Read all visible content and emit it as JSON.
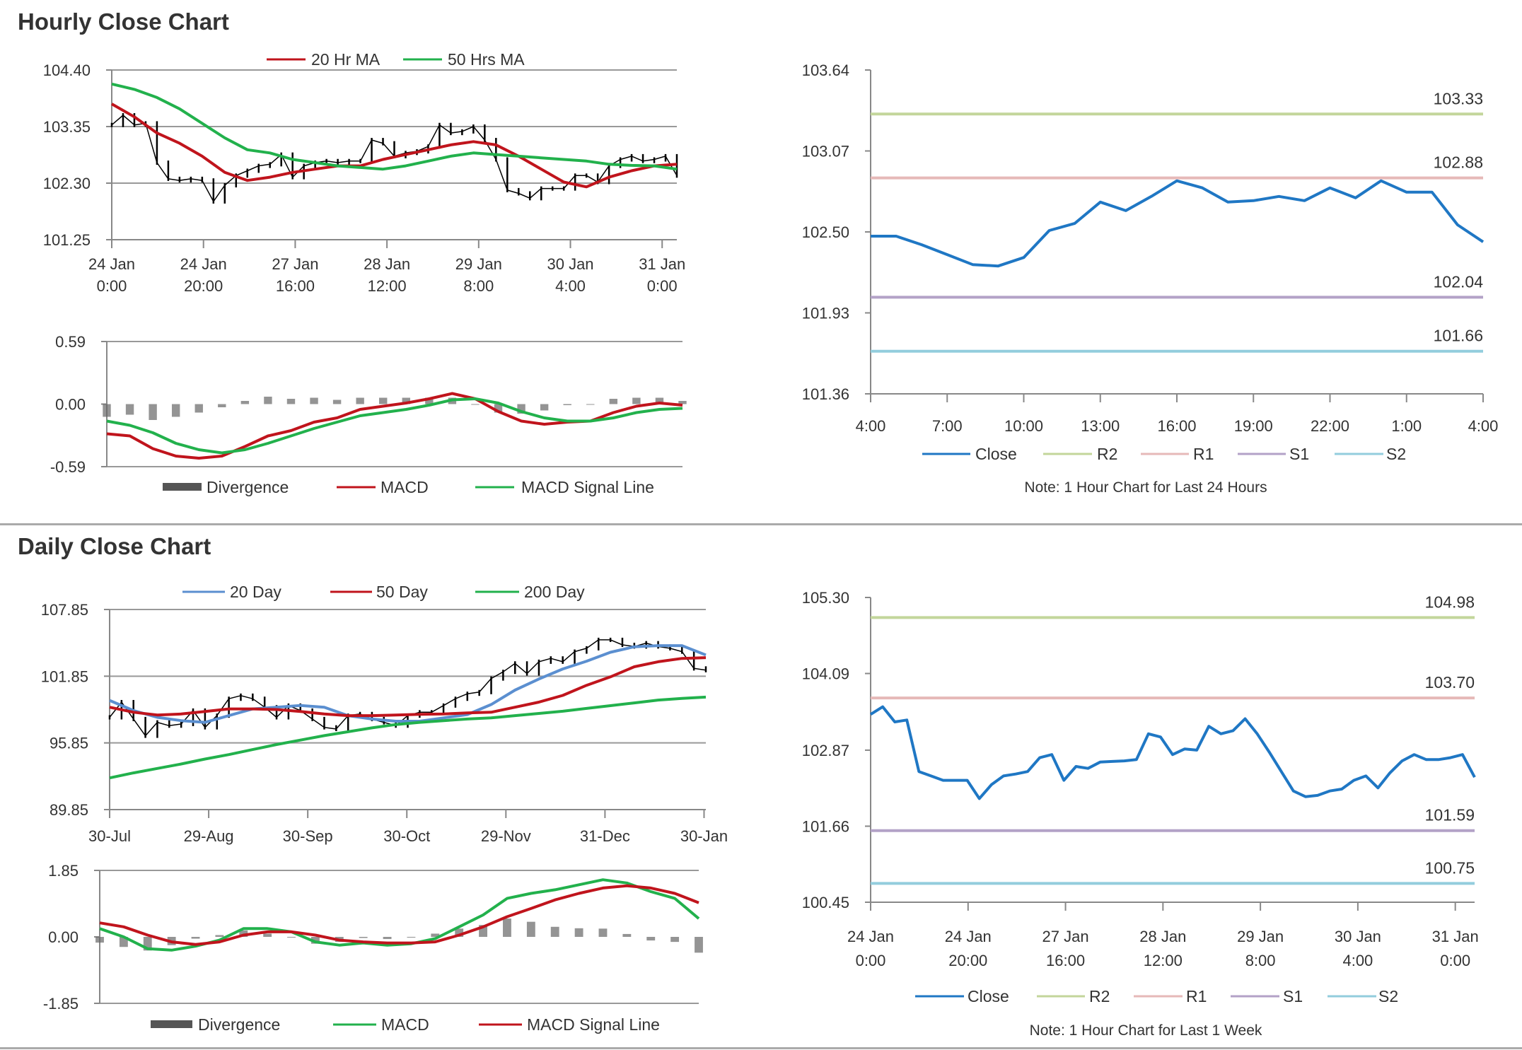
{
  "sections": {
    "hourly_title": "Hourly Close Chart",
    "daily_title": "Daily Close Chart"
  },
  "colors": {
    "price": "#000000",
    "red": "#c0141c",
    "green": "#22b14c",
    "blue_ma": "#5b8fd0",
    "close": "#1f77c4",
    "r2": "#c3d69b",
    "r1": "#e6b9b8",
    "s1": "#b3a2c7",
    "s2": "#93cddd",
    "divergence": "#666666"
  },
  "chart_data": [
    {
      "type": "line",
      "panel": "hourly-price",
      "ylim": [
        101.25,
        104.4
      ],
      "y_ticks": [
        "104.40",
        "103.35",
        "102.30",
        "101.25"
      ],
      "x_ticks": [
        {
          "date": "24 Jan",
          "time": "0:00"
        },
        {
          "date": "24 Jan",
          "time": "20:00"
        },
        {
          "date": "27 Jan",
          "time": "16:00"
        },
        {
          "date": "28 Jan",
          "time": "12:00"
        },
        {
          "date": "29 Jan",
          "time": "8:00"
        },
        {
          "date": "30 Jan",
          "time": "4:00"
        },
        {
          "date": "31 Jan",
          "time": "0:00"
        }
      ],
      "grid": true,
      "legend": "top",
      "series": [
        {
          "role": "price",
          "color": "#000000",
          "values": [
            103.38,
            103.56,
            103.38,
            103.41,
            102.68,
            102.38,
            102.35,
            102.38,
            102.35,
            101.96,
            102.26,
            102.44,
            102.53,
            102.62,
            102.65,
            102.83,
            102.41,
            102.62,
            102.68,
            102.71,
            102.68,
            102.71,
            102.71,
            103.1,
            103.04,
            102.8,
            102.86,
            102.89,
            102.98,
            103.38,
            103.23,
            103.26,
            103.35,
            103.1,
            102.74,
            102.17,
            102.11,
            102.02,
            102.2,
            102.2,
            102.2,
            102.44,
            102.44,
            102.32,
            102.62,
            102.74,
            102.8,
            102.71,
            102.74,
            102.8,
            102.44
          ]
        },
        {
          "name": "20 Hr MA",
          "color": "#c0141c",
          "values": [
            103.77,
            103.53,
            103.23,
            103.04,
            102.8,
            102.5,
            102.35,
            102.41,
            102.5,
            102.56,
            102.62,
            102.62,
            102.74,
            102.83,
            102.92,
            103.01,
            103.07,
            103.01,
            102.8,
            102.56,
            102.32,
            102.23,
            102.41,
            102.53,
            102.62,
            102.65
          ]
        },
        {
          "name": "50 Hrs MA",
          "color": "#22b14c",
          "values": [
            104.14,
            104.04,
            103.89,
            103.68,
            103.41,
            103.14,
            102.92,
            102.86,
            102.74,
            102.68,
            102.62,
            102.59,
            102.56,
            102.62,
            102.71,
            102.8,
            102.86,
            102.83,
            102.8,
            102.77,
            102.74,
            102.71,
            102.65,
            102.63,
            102.62,
            102.56
          ]
        }
      ]
    },
    {
      "type": "line",
      "panel": "hourly-macd",
      "ylim": [
        -0.59,
        0.59
      ],
      "y_ticks": [
        "0.59",
        "0.00",
        "-0.59"
      ],
      "legend": "bottom",
      "series": [
        {
          "name": "Divergence",
          "type": "bar",
          "color": "#666666",
          "values": [
            -0.12,
            -0.1,
            -0.15,
            -0.12,
            -0.08,
            -0.03,
            0.03,
            0.07,
            0.05,
            0.06,
            0.04,
            0.06,
            0.06,
            0.06,
            0.06,
            0.06,
            0.0,
            -0.08,
            -0.09,
            -0.06,
            -0.01,
            0.0,
            0.05,
            0.06,
            0.06,
            0.03
          ]
        },
        {
          "name": "MACD",
          "color": "#c0141c",
          "values": [
            -0.28,
            -0.3,
            -0.42,
            -0.49,
            -0.51,
            -0.49,
            -0.4,
            -0.3,
            -0.25,
            -0.17,
            -0.13,
            -0.05,
            -0.02,
            0.01,
            0.05,
            0.1,
            0.05,
            -0.07,
            -0.16,
            -0.19,
            -0.17,
            -0.16,
            -0.08,
            -0.02,
            0.01,
            -0.01
          ]
        },
        {
          "name": "MACD Signal Line",
          "color": "#22b14c",
          "values": [
            -0.16,
            -0.2,
            -0.27,
            -0.37,
            -0.43,
            -0.46,
            -0.43,
            -0.37,
            -0.3,
            -0.23,
            -0.17,
            -0.11,
            -0.08,
            -0.05,
            -0.01,
            0.04,
            0.05,
            0.01,
            -0.07,
            -0.13,
            -0.16,
            -0.16,
            -0.13,
            -0.08,
            -0.05,
            -0.04
          ]
        }
      ]
    },
    {
      "type": "line",
      "panel": "last-24-hours",
      "ylim": [
        101.36,
        103.64
      ],
      "y_ticks": [
        "103.64",
        "103.07",
        "102.50",
        "101.93",
        "101.36"
      ],
      "x_ticks": [
        "4:00",
        "7:00",
        "10:00",
        "13:00",
        "16:00",
        "19:00",
        "22:00",
        "1:00",
        "4:00"
      ],
      "legend": "bottom",
      "note": "Note: 1 Hour Chart for Last 24 Hours",
      "series": [
        {
          "name": "Close",
          "color": "#1f77c4",
          "values": [
            102.47,
            102.47,
            102.41,
            102.34,
            102.27,
            102.26,
            102.32,
            102.51,
            102.56,
            102.71,
            102.65,
            102.75,
            102.86,
            102.81,
            102.71,
            102.72,
            102.75,
            102.72,
            102.81,
            102.74,
            102.86,
            102.78,
            102.78,
            102.55,
            102.43
          ]
        },
        {
          "name": "R2",
          "color": "#c3d69b",
          "level": "103.33"
        },
        {
          "name": "R1",
          "color": "#e6b9b8",
          "level": "102.88"
        },
        {
          "name": "S1",
          "color": "#b3a2c7",
          "level": "102.04"
        },
        {
          "name": "S2",
          "color": "#93cddd",
          "level": "101.66"
        }
      ]
    },
    {
      "type": "line",
      "panel": "daily-price",
      "ylim": [
        89.85,
        107.85
      ],
      "y_ticks": [
        "107.85",
        "101.85",
        "95.85",
        "89.85"
      ],
      "x_ticks": [
        "30-Jul",
        "29-Aug",
        "30-Sep",
        "30-Oct",
        "29-Nov",
        "31-Dec",
        "30-Jan"
      ],
      "grid": true,
      "legend": "top",
      "series": [
        {
          "role": "price",
          "color": "#000000",
          "values": [
            98.15,
            99.52,
            98.0,
            96.49,
            97.7,
            97.4,
            97.55,
            98.76,
            97.25,
            98.3,
            99.82,
            100.1,
            99.82,
            99.06,
            98.15,
            99.21,
            98.76,
            98.0,
            97.25,
            97.1,
            98.3,
            98.45,
            98.0,
            97.7,
            97.4,
            98.3,
            98.61,
            98.61,
            99.21,
            99.82,
            100.27,
            100.42,
            101.64,
            102.24,
            103.0,
            102.09,
            103.15,
            103.45,
            103.15,
            104.06,
            104.36,
            105.12,
            105.12,
            104.67,
            104.52,
            104.82,
            104.52,
            104.36,
            104.06,
            102.55,
            102.39
          ]
        },
        {
          "name": "20 Day",
          "color": "#5b8fd0",
          "values": [
            99.67,
            98.76,
            98.15,
            97.85,
            97.7,
            98.3,
            98.91,
            99.06,
            99.21,
            99.06,
            98.3,
            98.0,
            97.8,
            97.8,
            98.1,
            98.4,
            99.3,
            100.6,
            101.6,
            102.5,
            103.2,
            104.0,
            104.5,
            104.6,
            104.6,
            103.76
          ]
        },
        {
          "name": "50 Day",
          "color": "#c0141c",
          "values": [
            99.06,
            98.61,
            98.36,
            98.45,
            98.67,
            98.91,
            98.91,
            98.85,
            98.67,
            98.45,
            98.3,
            98.3,
            98.36,
            98.42,
            98.45,
            98.55,
            98.61,
            99.06,
            99.52,
            100.12,
            101.03,
            101.79,
            102.7,
            103.15,
            103.45,
            103.52
          ]
        },
        {
          "name": "200 Day",
          "color": "#22b14c",
          "values": [
            92.7,
            93.15,
            93.55,
            93.95,
            94.4,
            94.8,
            95.25,
            95.7,
            96.1,
            96.5,
            96.85,
            97.2,
            97.5,
            97.7,
            97.85,
            98.0,
            98.1,
            98.3,
            98.5,
            98.7,
            98.95,
            99.2,
            99.45,
            99.7,
            99.85,
            99.97
          ]
        }
      ]
    },
    {
      "type": "line",
      "panel": "daily-macd",
      "ylim": [
        -1.85,
        1.85
      ],
      "y_ticks": [
        "1.85",
        "0.00",
        "-1.85"
      ],
      "legend": "bottom",
      "series": [
        {
          "name": "Divergence",
          "type": "bar",
          "color": "#666666",
          "values": [
            -0.16,
            -0.28,
            -0.38,
            -0.23,
            -0.05,
            0.05,
            0.18,
            0.09,
            0.0,
            -0.19,
            -0.14,
            -0.03,
            -0.06,
            -0.02,
            0.09,
            0.23,
            0.33,
            0.51,
            0.42,
            0.28,
            0.24,
            0.23,
            0.08,
            -0.1,
            -0.14,
            -0.44
          ]
        },
        {
          "name": "MACD",
          "color": "#22b14c",
          "values": [
            0.23,
            0.0,
            -0.33,
            -0.37,
            -0.26,
            -0.09,
            0.23,
            0.23,
            0.14,
            -0.14,
            -0.23,
            -0.17,
            -0.23,
            -0.19,
            -0.05,
            0.28,
            0.61,
            1.07,
            1.21,
            1.31,
            1.45,
            1.59,
            1.5,
            1.26,
            1.07,
            0.51
          ]
        },
        {
          "name": "MACD Signal Line",
          "color": "#c0141c",
          "values": [
            0.39,
            0.28,
            0.05,
            -0.14,
            -0.21,
            -0.14,
            0.05,
            0.14,
            0.14,
            0.05,
            -0.09,
            -0.14,
            -0.17,
            -0.17,
            -0.14,
            0.05,
            0.28,
            0.56,
            0.79,
            1.03,
            1.21,
            1.36,
            1.42,
            1.36,
            1.21,
            0.95
          ]
        }
      ]
    },
    {
      "type": "line",
      "panel": "last-1-week",
      "ylim": [
        100.45,
        105.3
      ],
      "y_ticks": [
        "105.30",
        "104.09",
        "102.87",
        "101.66",
        "100.45"
      ],
      "x_ticks": [
        {
          "date": "24 Jan",
          "time": "0:00"
        },
        {
          "date": "24 Jan",
          "time": "20:00"
        },
        {
          "date": "27 Jan",
          "time": "16:00"
        },
        {
          "date": "28 Jan",
          "time": "12:00"
        },
        {
          "date": "29 Jan",
          "time": "8:00"
        },
        {
          "date": "30 Jan",
          "time": "4:00"
        },
        {
          "date": "31 Jan",
          "time": "0:00"
        }
      ],
      "legend": "bottom",
      "note": "Note: 1 Hour Chart for Last 1 Week",
      "series": [
        {
          "name": "Close",
          "color": "#1f77c4",
          "values": [
            103.44,
            103.56,
            103.32,
            103.35,
            102.53,
            102.46,
            102.39,
            102.39,
            102.39,
            102.1,
            102.32,
            102.46,
            102.49,
            102.53,
            102.75,
            102.8,
            102.39,
            102.61,
            102.58,
            102.68,
            102.69,
            102.7,
            102.72,
            103.13,
            103.08,
            102.8,
            102.89,
            102.87,
            103.25,
            103.13,
            103.18,
            103.37,
            103.13,
            102.84,
            102.53,
            102.22,
            102.13,
            102.15,
            102.22,
            102.25,
            102.39,
            102.46,
            102.27,
            102.51,
            102.7,
            102.8,
            102.72,
            102.72,
            102.75,
            102.8,
            102.44
          ]
        },
        {
          "name": "R2",
          "color": "#c3d69b",
          "level": "104.98"
        },
        {
          "name": "R1",
          "color": "#e6b9b8",
          "level": "103.70"
        },
        {
          "name": "S1",
          "color": "#b3a2c7",
          "level": "101.59"
        },
        {
          "name": "S2",
          "color": "#93cddd",
          "level": "100.75"
        }
      ]
    }
  ]
}
